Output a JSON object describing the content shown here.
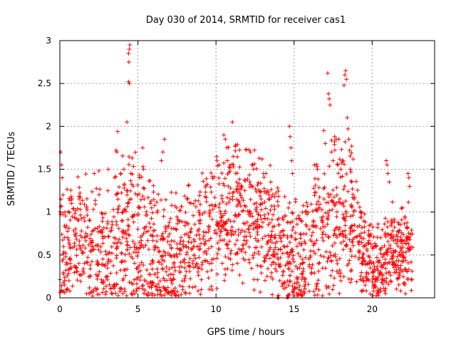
{
  "chart_data": {
    "type": "scatter",
    "title": "Day 030 of 2014, SRMTID for receiver cas1",
    "xlabel": "GPS time / hours",
    "ylabel": "SRMTID / TECUs",
    "xlim": [
      0,
      24
    ],
    "ylim": [
      0,
      3
    ],
    "xticks": [
      0,
      5,
      10,
      15,
      20
    ],
    "yticks": [
      0,
      0.5,
      1,
      1.5,
      2,
      2.5,
      3
    ],
    "ytick_labels": [
      "0",
      "0.5",
      "1",
      "1.5",
      "2",
      "2.5",
      "3"
    ],
    "grid": true,
    "marker": "+",
    "series_color": "#ff0000",
    "series": [
      {
        "name": "cas1",
        "outliers": [
          [
            0.05,
            1.7
          ],
          [
            0.1,
            1.55
          ],
          [
            0.15,
            1.4
          ],
          [
            0.2,
            1.2
          ],
          [
            0.3,
            0.15
          ],
          [
            2.2,
            1.45
          ],
          [
            2.5,
            1.48
          ],
          [
            3.1,
            1.5
          ],
          [
            3.6,
            1.72
          ],
          [
            3.65,
            1.7
          ],
          [
            3.7,
            1.94
          ],
          [
            4.1,
            1.5
          ],
          [
            4.3,
            2.05
          ],
          [
            4.4,
            2.52
          ],
          [
            4.45,
            2.5
          ],
          [
            4.42,
            2.75
          ],
          [
            4.45,
            2.9
          ],
          [
            4.48,
            2.95
          ],
          [
            4.4,
            2.85
          ],
          [
            4.55,
            1.45
          ],
          [
            4.3,
            1.2
          ],
          [
            4.6,
            0.05
          ],
          [
            4.8,
            0.05
          ],
          [
            4.9,
            0.08
          ],
          [
            5.1,
            1.4
          ],
          [
            5.3,
            1.75
          ],
          [
            5.35,
            1.5
          ],
          [
            6.7,
            1.85
          ],
          [
            6.6,
            1.7
          ],
          [
            6.5,
            1.6
          ],
          [
            10.2,
            1.55
          ],
          [
            10.5,
            1.9
          ],
          [
            10.6,
            1.85
          ],
          [
            10.7,
            1.75
          ],
          [
            10.9,
            1.55
          ],
          [
            11.05,
            2.05
          ],
          [
            11.1,
            1.65
          ],
          [
            12.2,
            1.7
          ],
          [
            12.3,
            1.55
          ],
          [
            12.4,
            1.5
          ],
          [
            13.2,
            1.45
          ],
          [
            13.5,
            1.35
          ],
          [
            14.0,
            0.03
          ],
          [
            14.6,
            0.03
          ],
          [
            14.7,
            2.0
          ],
          [
            14.75,
            1.88
          ],
          [
            14.8,
            1.75
          ],
          [
            14.85,
            1.6
          ],
          [
            14.9,
            1.45
          ],
          [
            15.1,
            1.15
          ],
          [
            16.3,
            1.55
          ],
          [
            16.5,
            1.5
          ],
          [
            16.9,
            1.95
          ],
          [
            17.0,
            1.8
          ],
          [
            17.15,
            2.62
          ],
          [
            17.2,
            2.38
          ],
          [
            17.25,
            2.32
          ],
          [
            17.3,
            2.25
          ],
          [
            17.4,
            1.7
          ],
          [
            17.5,
            1.6
          ],
          [
            17.6,
            1.88
          ],
          [
            17.7,
            1.85
          ],
          [
            17.8,
            1.55
          ],
          [
            18.0,
            1.5
          ],
          [
            18.1,
            1.6
          ],
          [
            18.2,
            2.48
          ],
          [
            18.25,
            2.6
          ],
          [
            18.3,
            2.65
          ],
          [
            18.35,
            2.55
          ],
          [
            18.4,
            2.1
          ],
          [
            18.45,
            1.97
          ],
          [
            18.5,
            1.85
          ],
          [
            18.55,
            1.72
          ],
          [
            18.6,
            1.5
          ],
          [
            18.7,
            1.35
          ],
          [
            17.9,
            0.05
          ],
          [
            18.0,
            0.2
          ],
          [
            20.9,
            1.6
          ],
          [
            20.95,
            1.55
          ],
          [
            21.0,
            1.45
          ],
          [
            21.1,
            1.35
          ],
          [
            22.3,
            1.45
          ],
          [
            22.35,
            1.4
          ],
          [
            22.4,
            1.3
          ]
        ],
        "base_curve": [
          [
            0,
            0.45
          ],
          [
            1,
            0.6
          ],
          [
            2,
            0.6
          ],
          [
            3,
            0.45
          ],
          [
            3.7,
            0.55
          ],
          [
            4.5,
            0.75
          ],
          [
            5.3,
            0.55
          ],
          [
            6.5,
            0.3
          ],
          [
            8,
            0.55
          ],
          [
            9.5,
            0.7
          ],
          [
            10.5,
            0.9
          ],
          [
            11.5,
            0.95
          ],
          [
            12.5,
            0.85
          ],
          [
            13.8,
            0.7
          ],
          [
            14.6,
            0.4
          ],
          [
            15.5,
            0.4
          ],
          [
            16.5,
            0.65
          ],
          [
            17.5,
            0.85
          ],
          [
            18.4,
            0.9
          ],
          [
            19.2,
            0.6
          ],
          [
            19.8,
            0.35
          ],
          [
            20.5,
            0.35
          ],
          [
            21.2,
            0.55
          ],
          [
            22.0,
            0.6
          ],
          [
            22.6,
            0.45
          ]
        ],
        "spread_curve": [
          [
            0,
            0.3
          ],
          [
            2,
            0.35
          ],
          [
            4.5,
            0.45
          ],
          [
            6.5,
            0.35
          ],
          [
            8,
            0.35
          ],
          [
            10.5,
            0.35
          ],
          [
            12.5,
            0.35
          ],
          [
            14.6,
            0.3
          ],
          [
            17,
            0.4
          ],
          [
            18.4,
            0.45
          ],
          [
            20,
            0.2
          ],
          [
            22.6,
            0.25
          ]
        ],
        "x_range": [
          0,
          22.6
        ],
        "bottom_segments": [
          [
            13.9,
            14.05
          ],
          [
            14.5,
            14.65
          ]
        ]
      }
    ]
  }
}
